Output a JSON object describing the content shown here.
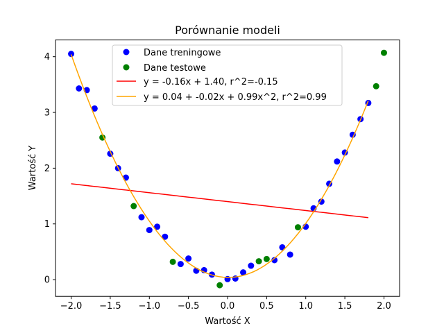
{
  "chart_data": {
    "type": "scatter",
    "title": "Porównanie modeli",
    "xlabel": "Wartość X",
    "ylabel": "Wartość Y",
    "xlim": [
      -2.2,
      2.2
    ],
    "ylim": [
      -0.3,
      4.3
    ],
    "x_ticks": [
      -2.0,
      -1.5,
      -1.0,
      -0.5,
      0.0,
      0.5,
      1.0,
      1.5,
      2.0
    ],
    "x_tick_labels": [
      "−2.0",
      "−1.5",
      "−1.0",
      "−0.5",
      "0.0",
      "0.5",
      "1.0",
      "1.5",
      "2.0"
    ],
    "y_ticks": [
      0,
      1,
      2,
      3,
      4
    ],
    "y_tick_labels": [
      "0",
      "1",
      "2",
      "3",
      "4"
    ],
    "grid": false,
    "legend_position": "top-center",
    "series": [
      {
        "name": "Dane treningowe",
        "kind": "scatter",
        "color": "#0000ff",
        "points": [
          [
            -2.0,
            4.05
          ],
          [
            -1.9,
            3.43
          ],
          [
            -1.8,
            3.4
          ],
          [
            -1.7,
            3.07
          ],
          [
            -1.5,
            2.26
          ],
          [
            -1.4,
            2.0
          ],
          [
            -1.3,
            1.83
          ],
          [
            -1.1,
            1.12
          ],
          [
            -1.0,
            0.89
          ],
          [
            -0.9,
            0.95
          ],
          [
            -0.8,
            0.77
          ],
          [
            -0.6,
            0.28
          ],
          [
            -0.5,
            0.38
          ],
          [
            -0.4,
            0.16
          ],
          [
            -0.3,
            0.17
          ],
          [
            -0.2,
            0.09
          ],
          [
            0.0,
            0.01
          ],
          [
            0.1,
            0.02
          ],
          [
            0.2,
            0.13
          ],
          [
            0.3,
            0.25
          ],
          [
            0.6,
            0.35
          ],
          [
            0.7,
            0.58
          ],
          [
            0.8,
            0.45
          ],
          [
            1.0,
            0.95
          ],
          [
            1.1,
            1.28
          ],
          [
            1.2,
            1.4
          ],
          [
            1.3,
            1.72
          ],
          [
            1.4,
            2.12
          ],
          [
            1.5,
            2.28
          ],
          [
            1.6,
            2.6
          ],
          [
            1.7,
            2.88
          ],
          [
            1.8,
            3.17
          ]
        ]
      },
      {
        "name": "Dane testowe",
        "kind": "scatter",
        "color": "#008000",
        "points": [
          [
            -1.6,
            2.55
          ],
          [
            -1.2,
            1.32
          ],
          [
            -0.7,
            0.32
          ],
          [
            -0.1,
            -0.1
          ],
          [
            0.4,
            0.33
          ],
          [
            0.5,
            0.37
          ],
          [
            0.9,
            0.94
          ],
          [
            1.9,
            3.47
          ],
          [
            2.0,
            4.07
          ]
        ]
      },
      {
        "name": "y = -0.16x + 1.40, r^2=-0.15",
        "kind": "line",
        "color": "#ff0000",
        "linear": {
          "a": -0.16,
          "b": 1.4
        },
        "x_range": [
          -2.0,
          1.8
        ]
      },
      {
        "name": "y = 0.04 + -0.02x + 0.99x^2, r^2=0.99",
        "kind": "line",
        "color": "#ffa500",
        "poly": {
          "c0": 0.04,
          "c1": -0.02,
          "c2": 0.99
        },
        "x_range": [
          -2.0,
          1.8
        ]
      }
    ]
  }
}
